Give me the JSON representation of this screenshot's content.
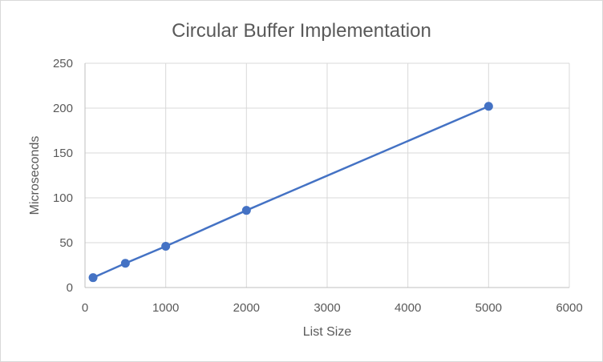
{
  "chart_data": {
    "type": "scatter",
    "title": "Circular Buffer Implementation",
    "xlabel": "List Size",
    "ylabel": "Microseconds",
    "xlim": [
      0,
      6000
    ],
    "ylim": [
      0,
      250
    ],
    "x_ticks": [
      0,
      1000,
      2000,
      3000,
      4000,
      5000,
      6000
    ],
    "y_ticks": [
      0,
      50,
      100,
      150,
      200,
      250
    ],
    "grid": true,
    "legend": "none",
    "series": [
      {
        "x": [
          100,
          500,
          1000,
          2000,
          5000
        ],
        "y": [
          11,
          27,
          46,
          86,
          202
        ],
        "color": "#4472c4",
        "style": "line-with-markers"
      }
    ]
  }
}
